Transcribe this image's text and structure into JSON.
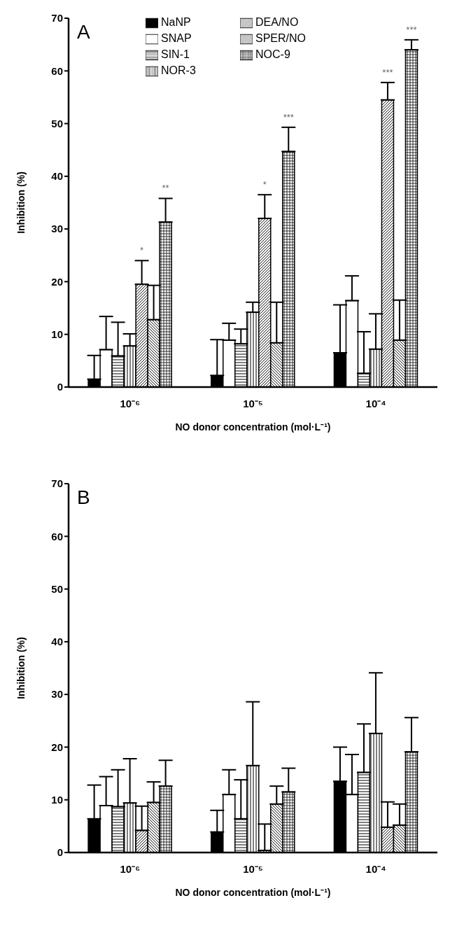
{
  "chart_data": [
    {
      "type": "bar",
      "title": "A",
      "xlabel": "NO donor concentration (mol·L⁻¹)",
      "ylabel": "Inhibition (%)",
      "categories": [
        "10⁻⁶",
        "10⁻⁵",
        "10⁻⁴"
      ],
      "ylim": [
        0,
        70
      ],
      "yticks": [
        0,
        10,
        20,
        30,
        40,
        50,
        60,
        70
      ],
      "legend": "top",
      "series": [
        {
          "name": "NaNP",
          "color": "#000000",
          "values": [
            1.5,
            2.2,
            6.5
          ],
          "errors": [
            [
              1.5,
              6.0
            ],
            [
              2.2,
              9.0
            ],
            [
              6.5,
              15.6
            ]
          ]
        },
        {
          "name": "SNAP",
          "color": "#ffffff",
          "values": [
            7.1,
            8.9,
            16.4
          ],
          "errors": [
            [
              7.1,
              13.4
            ],
            [
              8.9,
              12.1
            ],
            [
              16.4,
              21.1
            ]
          ]
        },
        {
          "name": "SIN-1",
          "color": "#000000",
          "values": [
            5.9,
            8.2,
            2.6
          ],
          "errors": [
            [
              5.9,
              12.3
            ],
            [
              8.2,
              11.0
            ],
            [
              2.6,
              10.5
            ]
          ]
        },
        {
          "name": "NOR-3",
          "color": "#000000",
          "values": [
            7.8,
            14.2,
            7.2
          ],
          "errors": [
            [
              7.8,
              10.1
            ],
            [
              14.2,
              16.1
            ],
            [
              7.2,
              13.9
            ]
          ]
        },
        {
          "name": "DEA/NO",
          "color": "#000000",
          "values": [
            19.5,
            32.0,
            54.5
          ],
          "errors": [
            [
              19.5,
              24.0
            ],
            [
              32.0,
              36.5
            ],
            [
              54.5,
              57.8
            ]
          ]
        },
        {
          "name": "SPER/NO",
          "color": "#000000",
          "values": [
            12.8,
            8.4,
            8.9
          ],
          "errors": [
            [
              12.8,
              19.3
            ],
            [
              8.4,
              16.1
            ],
            [
              8.9,
              16.5
            ]
          ]
        },
        {
          "name": "NOC-9",
          "color": "#000000",
          "values": [
            31.3,
            44.7,
            64.0
          ],
          "errors": [
            [
              31.3,
              35.8
            ],
            [
              44.7,
              49.3
            ],
            [
              64.0,
              65.9
            ]
          ]
        }
      ],
      "annotations": [
        "*",
        "**",
        "*",
        "***",
        "***",
        "***"
      ]
    },
    {
      "type": "bar",
      "title": "B",
      "xlabel": "NO donor concentration (mol·L⁻¹)",
      "ylabel": "Inhibition (%)",
      "categories": [
        "10⁻⁶",
        "10⁻⁵",
        "10⁻⁴"
      ],
      "ylim": [
        0,
        70
      ],
      "yticks": [
        0,
        10,
        20,
        30,
        40,
        50,
        60,
        70
      ],
      "series": [
        {
          "color": "#000000",
          "values": [
            6.4,
            3.9,
            13.5
          ],
          "errors": [
            [
              6.4,
              12.8
            ],
            [
              3.9,
              8.0
            ],
            [
              13.5,
              20.0
            ]
          ]
        },
        {
          "color": "#ffffff",
          "values": [
            8.9,
            11.0,
            11.0
          ],
          "errors": [
            [
              8.9,
              14.4
            ],
            [
              11.0,
              15.7
            ],
            [
              11.0,
              18.6
            ]
          ]
        },
        {
          "color": "#000000",
          "values": [
            8.7,
            6.4,
            15.2
          ],
          "errors": [
            [
              8.7,
              15.7
            ],
            [
              6.4,
              13.8
            ],
            [
              15.2,
              24.4
            ]
          ]
        },
        {
          "color": "#000000",
          "values": [
            9.4,
            16.5,
            22.6
          ],
          "errors": [
            [
              9.4,
              17.8
            ],
            [
              16.5,
              28.6
            ],
            [
              22.6,
              34.1
            ]
          ]
        },
        {
          "color": "#000000",
          "values": [
            4.2,
            0.4,
            4.8
          ],
          "errors": [
            [
              4.2,
              8.8
            ],
            [
              0.4,
              5.4
            ],
            [
              4.8,
              9.6
            ]
          ]
        },
        {
          "color": "#000000",
          "values": [
            9.5,
            9.2,
            5.2
          ],
          "errors": [
            [
              9.5,
              13.4
            ],
            [
              9.2,
              12.6
            ],
            [
              5.2,
              9.2
            ]
          ]
        },
        {
          "color": "#000000",
          "values": [
            12.6,
            11.5,
            19.1
          ],
          "errors": [
            [
              12.6,
              17.5
            ],
            [
              11.5,
              16.0
            ],
            [
              19.1,
              25.6
            ]
          ]
        }
      ]
    }
  ]
}
